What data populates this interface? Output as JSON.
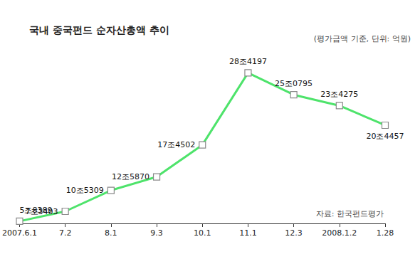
{
  "chart_data": {
    "type": "line",
    "title": "국내 중국펀드 순자산총액 추이",
    "subtitle": "(평가금액 기준, 단위: 억원)",
    "source": "자료: 한국펀드평가",
    "categories": [
      "2007.6.1",
      "7.2",
      "8.1",
      "9.3",
      "10.1",
      "11.1",
      "12.3",
      "2008.1.2",
      "1.28"
    ],
    "values": [
      58389,
      73403,
      105309,
      125870,
      174502,
      284197,
      250795,
      234275,
      204457
    ],
    "value_labels": [
      "5조8389",
      "7조3403",
      "10조5309",
      "12조5870",
      "17조4502",
      "28조4197",
      "25조0795",
      "23조4275",
      "20조4457"
    ],
    "color": "#4ee36b",
    "marker": "square",
    "ylim": [
      55000,
      290000
    ],
    "grid": false,
    "data_labels": true,
    "tick_labels": "x"
  }
}
